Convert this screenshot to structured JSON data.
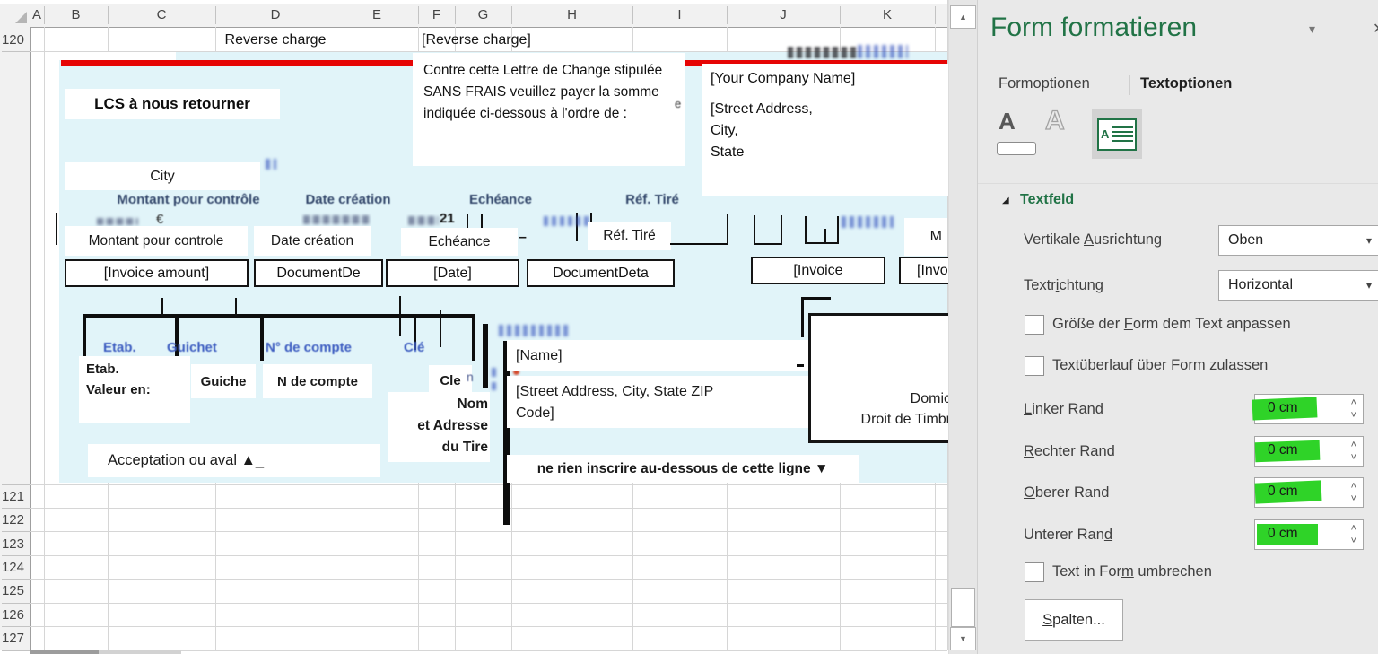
{
  "spreadsheet": {
    "column_headers": [
      "A",
      "B",
      "C",
      "D",
      "E",
      "F",
      "G",
      "H",
      "I",
      "J",
      "K"
    ],
    "row_headers": [
      "120",
      "121",
      "122",
      "123",
      "124",
      "125",
      "126",
      "127"
    ],
    "cells": {
      "reverse_charge": "Reverse charge",
      "reverse_charge_ref": "[Reverse charge]"
    }
  },
  "form_doc": {
    "lcs_title": "LCS à nous retourner",
    "instruction": "Contre cette Lettre de Change stipulée SANS FRAIS veuillez payer la somme indiquée ci-dessous à l'ordre de :",
    "company_name": "[Your Company Name]",
    "company_address": [
      "[Street Address,",
      "City,",
      "State"
    ],
    "city_label": "City",
    "scan_headers": [
      "Montant pour contrôle",
      "Date création",
      "Echéance",
      "Réf. Tiré"
    ],
    "overlay_headers": [
      "Montant pour controle",
      "Date création",
      "Echéance",
      "Réf. Tiré"
    ],
    "dash": "–",
    "field_boxes": [
      "[Invoice amount]",
      "DocumentDe",
      "[Date]",
      "DocumentDeta",
      "[Invoice",
      "[Invo"
    ],
    "artifacts": {
      "euro": "€",
      "year": "21",
      "m": "M",
      "e": "e",
      "n": "n"
    },
    "bank_scan_labels": [
      "Etab.",
      "Guichet",
      "N° de compte",
      "Clé"
    ],
    "etab_line1": "Etab.",
    "etab_line2": "Valeur en:",
    "guiche": "Guiche",
    "n_de_compte": "N de compte",
    "cle": "Cle",
    "nom_lines": [
      "Nom",
      "et Adresse",
      "du Tire"
    ],
    "acceptation": "Acceptation ou aval ▲_",
    "name_field": "[Name]",
    "street_field": "[Street Address, City, State ZIP Code]",
    "ne_rien": "ne rien inscrire au-dessous de cette ligne ▼",
    "domiciliation": [
      "Domic",
      "Droit de Timbr"
    ]
  },
  "panel": {
    "title": "Form formatieren",
    "tabs": {
      "form": "Formoptionen",
      "text": "Textoptionen"
    },
    "section_title": "Textfeld",
    "vertical_alignment_label": "Vertikale Ausrichtung",
    "vertical_alignment_value": "Oben",
    "text_direction_label": "Textrichtung",
    "text_direction_value": "Horizontal",
    "checkbox_resize": "Größe der Form dem Text anpassen",
    "checkbox_overflow": "Textüberlauf über Form zulassen",
    "margin_left_label": "Linker Rand",
    "margin_right_label": "Rechter Rand",
    "margin_top_label": "Oberer Rand",
    "margin_bottom_label": "Unterer Rand",
    "margin_value": "0 cm",
    "checkbox_wrap": "Text in Form umbrechen",
    "columns_button": "Spalten...",
    "icon_a_glyph": "A",
    "accent_green": "#217346",
    "highlight_green": "#2fd328"
  },
  "glyphs": {
    "caret": "▾",
    "chev_up": "˄",
    "chev_down": "˅",
    "scroll_up": "▲",
    "scroll_down": "▼",
    "expander": "◢",
    "close": "✕"
  }
}
